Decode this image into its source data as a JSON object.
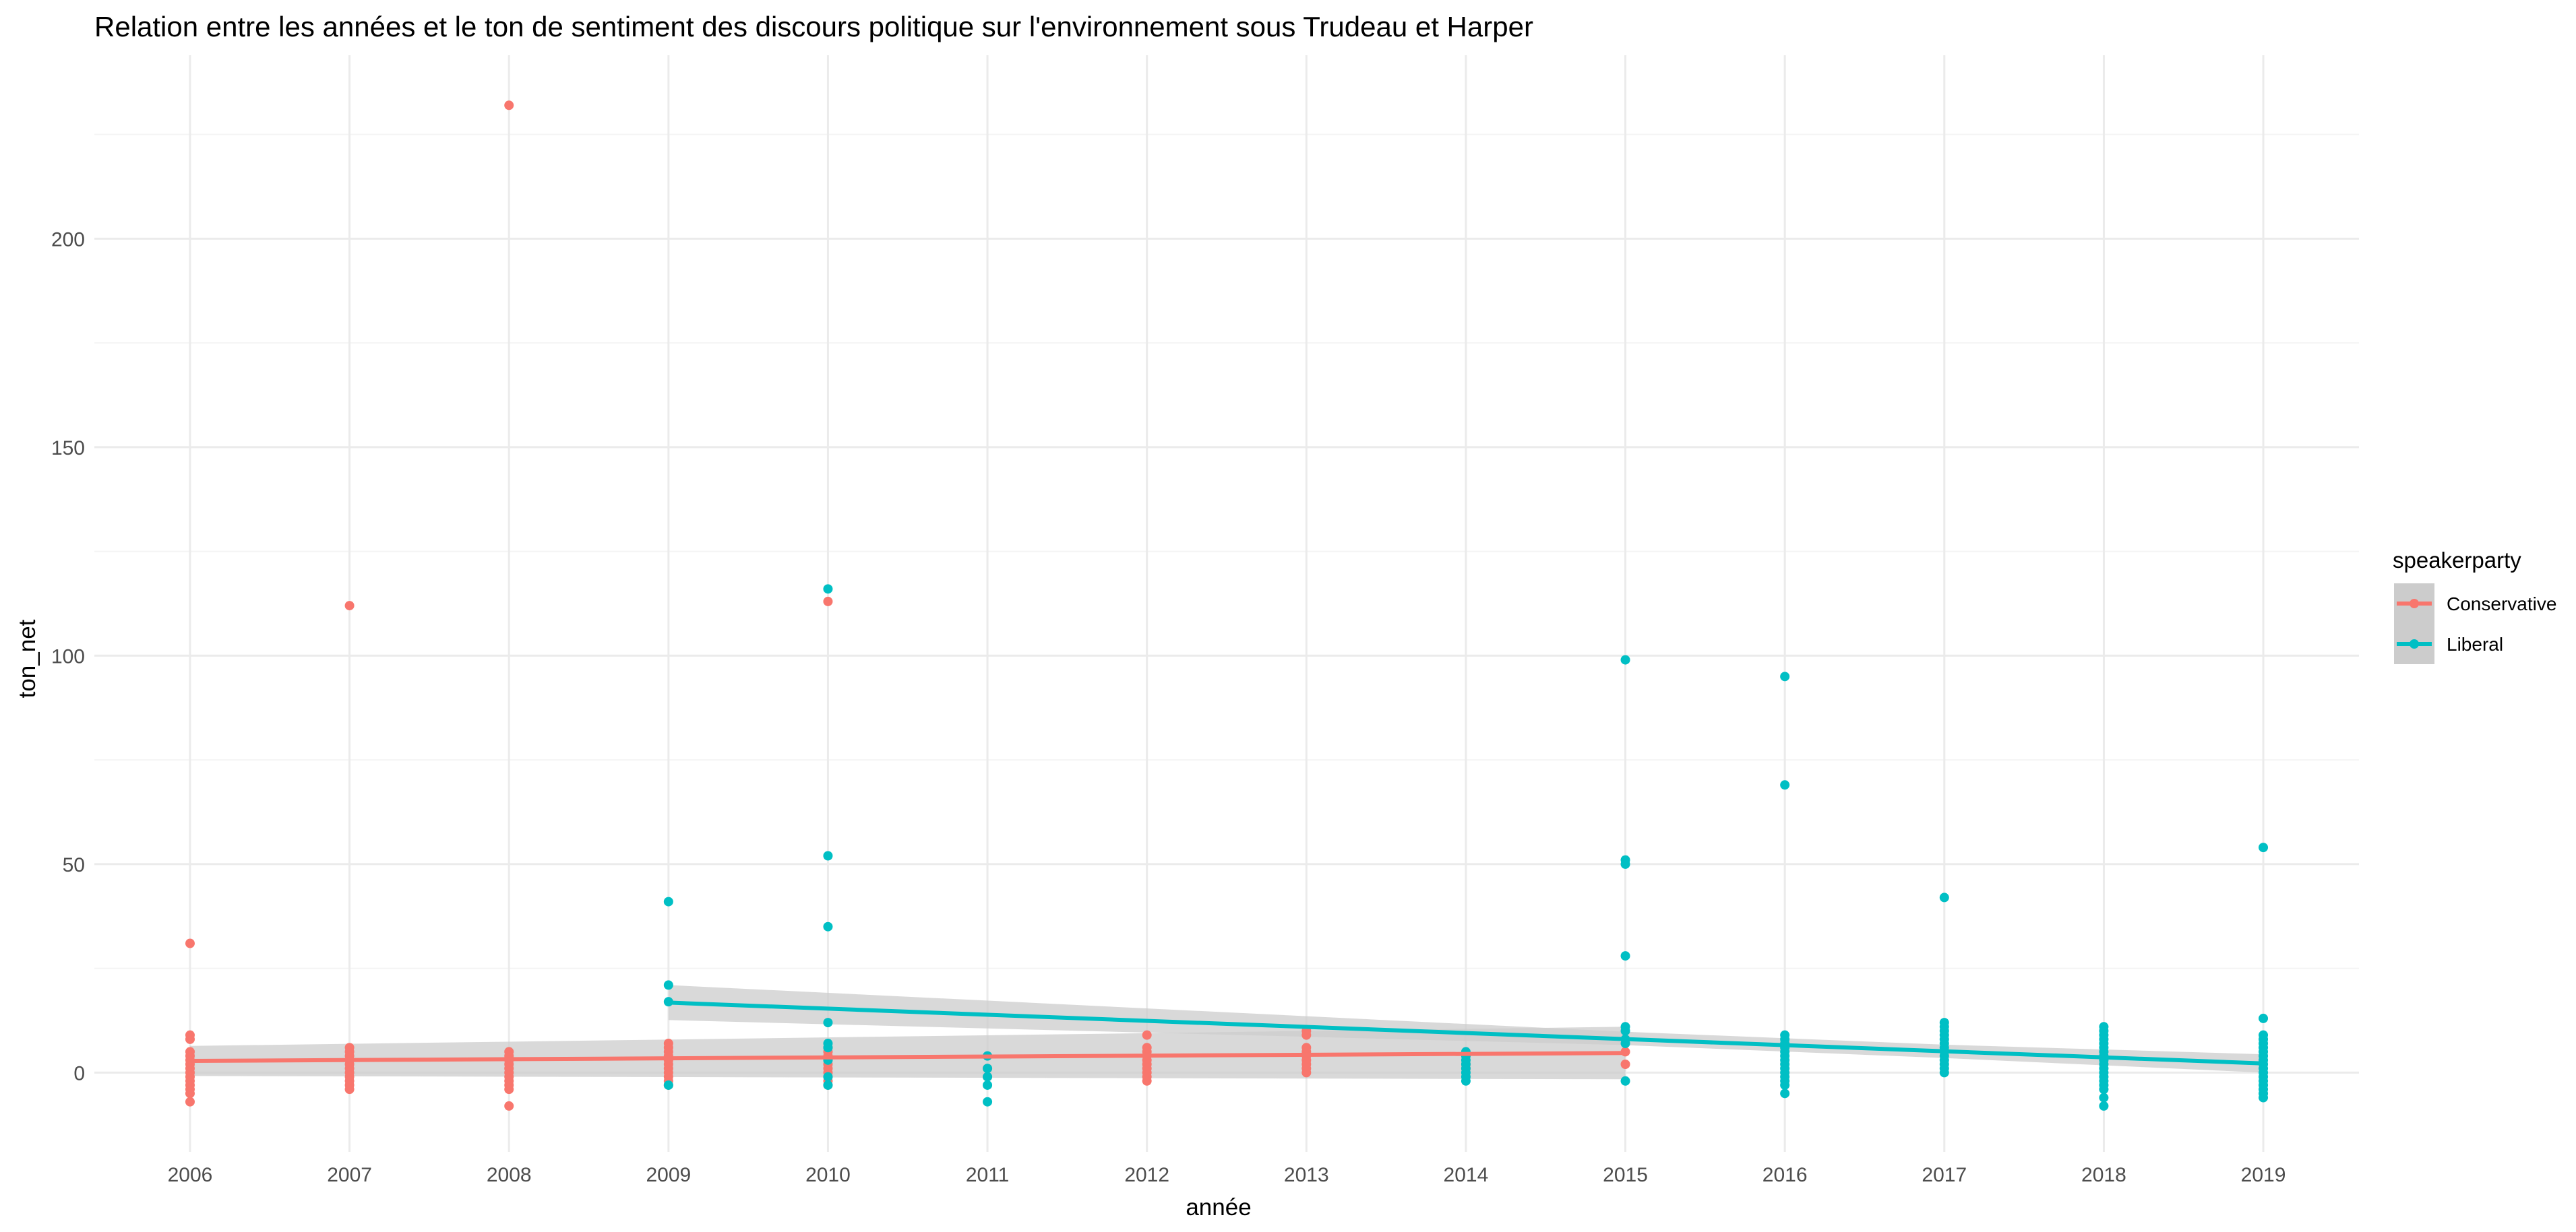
{
  "chart_data": {
    "type": "scatter",
    "title": "Relation entre les années et le ton de sentiment des discours politique sur l'environnement sous Trudeau et Harper",
    "xlabel": "année",
    "ylabel": "ton_net",
    "x_ticks": [
      2006,
      2007,
      2008,
      2009,
      2010,
      2011,
      2012,
      2013,
      2014,
      2015,
      2016,
      2017,
      2018,
      2019
    ],
    "y_ticks": [
      0,
      50,
      100,
      150,
      200
    ],
    "xlim": [
      2005.4,
      2019.6
    ],
    "ylim": [
      -19,
      244
    ],
    "grid": true,
    "legend": {
      "title": "speakerparty",
      "position": "right",
      "entries": [
        "Conservative",
        "Liberal"
      ]
    },
    "colors": {
      "Conservative": "#F8766D",
      "Liberal": "#00BFC4",
      "ribbon": "#CCCCCC"
    },
    "series": [
      {
        "name": "Conservative",
        "points": [
          [
            2006,
            31
          ],
          [
            2006,
            9
          ],
          [
            2006,
            8
          ],
          [
            2006,
            5
          ],
          [
            2006,
            4
          ],
          [
            2006,
            3
          ],
          [
            2006,
            2
          ],
          [
            2006,
            1
          ],
          [
            2006,
            0
          ],
          [
            2006,
            -1
          ],
          [
            2006,
            -2
          ],
          [
            2006,
            -3
          ],
          [
            2006,
            -4
          ],
          [
            2006,
            -5
          ],
          [
            2006,
            -7
          ],
          [
            2007,
            112
          ],
          [
            2007,
            6
          ],
          [
            2007,
            5
          ],
          [
            2007,
            4
          ],
          [
            2007,
            3
          ],
          [
            2007,
            2
          ],
          [
            2007,
            1
          ],
          [
            2007,
            0
          ],
          [
            2007,
            -1
          ],
          [
            2007,
            -2
          ],
          [
            2007,
            -3
          ],
          [
            2007,
            -4
          ],
          [
            2008,
            232
          ],
          [
            2008,
            5
          ],
          [
            2008,
            4
          ],
          [
            2008,
            3
          ],
          [
            2008,
            2
          ],
          [
            2008,
            1
          ],
          [
            2008,
            0
          ],
          [
            2008,
            -1
          ],
          [
            2008,
            -2
          ],
          [
            2008,
            -3
          ],
          [
            2008,
            -4
          ],
          [
            2008,
            -8
          ],
          [
            2009,
            7
          ],
          [
            2009,
            6
          ],
          [
            2009,
            5
          ],
          [
            2009,
            4
          ],
          [
            2009,
            3
          ],
          [
            2009,
            2
          ],
          [
            2009,
            1
          ],
          [
            2009,
            0
          ],
          [
            2009,
            -1
          ],
          [
            2009,
            -2
          ],
          [
            2009,
            -3
          ],
          [
            2010,
            113
          ],
          [
            2010,
            6
          ],
          [
            2010,
            5
          ],
          [
            2010,
            4
          ],
          [
            2010,
            3
          ],
          [
            2010,
            2
          ],
          [
            2010,
            1
          ],
          [
            2010,
            0
          ],
          [
            2010,
            -1
          ],
          [
            2010,
            -2
          ],
          [
            2010,
            -3
          ],
          [
            2011,
            1
          ],
          [
            2011,
            -1
          ],
          [
            2012,
            9
          ],
          [
            2012,
            6
          ],
          [
            2012,
            5
          ],
          [
            2012,
            4
          ],
          [
            2012,
            3
          ],
          [
            2012,
            2
          ],
          [
            2012,
            1
          ],
          [
            2012,
            0
          ],
          [
            2012,
            -1
          ],
          [
            2012,
            -2
          ],
          [
            2013,
            10
          ],
          [
            2013,
            9
          ],
          [
            2013,
            6
          ],
          [
            2013,
            5
          ],
          [
            2013,
            4
          ],
          [
            2013,
            3
          ],
          [
            2013,
            2
          ],
          [
            2013,
            1
          ],
          [
            2013,
            0
          ],
          [
            2014,
            4
          ],
          [
            2014,
            2
          ],
          [
            2014,
            1
          ],
          [
            2015,
            5
          ],
          [
            2015,
            2
          ]
        ],
        "trend": {
          "x": [
            2006,
            2015
          ],
          "y": [
            2.8,
            4.7
          ]
        },
        "band": {
          "x": [
            2006,
            2015
          ],
          "lower": [
            -0.8,
            -1.6
          ],
          "upper": [
            6.4,
            11.0
          ]
        }
      },
      {
        "name": "Liberal",
        "points": [
          [
            2009,
            41
          ],
          [
            2009,
            21
          ],
          [
            2009,
            17
          ],
          [
            2009,
            -3
          ],
          [
            2010,
            116
          ],
          [
            2010,
            52
          ],
          [
            2010,
            35
          ],
          [
            2010,
            12
          ],
          [
            2010,
            7
          ],
          [
            2010,
            6
          ],
          [
            2010,
            3
          ],
          [
            2010,
            -1
          ],
          [
            2010,
            -3
          ],
          [
            2011,
            4
          ],
          [
            2011,
            1
          ],
          [
            2011,
            -1
          ],
          [
            2011,
            -3
          ],
          [
            2011,
            -7
          ],
          [
            2014,
            5
          ],
          [
            2014,
            4
          ],
          [
            2014,
            3
          ],
          [
            2014,
            2
          ],
          [
            2014,
            1
          ],
          [
            2014,
            0
          ],
          [
            2014,
            -1
          ],
          [
            2014,
            -2
          ],
          [
            2015,
            99
          ],
          [
            2015,
            51
          ],
          [
            2015,
            50
          ],
          [
            2015,
            28
          ],
          [
            2015,
            11
          ],
          [
            2015,
            10
          ],
          [
            2015,
            8
          ],
          [
            2015,
            7
          ],
          [
            2015,
            -2
          ],
          [
            2016,
            95
          ],
          [
            2016,
            69
          ],
          [
            2016,
            9
          ],
          [
            2016,
            8
          ],
          [
            2016,
            7
          ],
          [
            2016,
            6
          ],
          [
            2016,
            5
          ],
          [
            2016,
            4
          ],
          [
            2016,
            3
          ],
          [
            2016,
            2
          ],
          [
            2016,
            1
          ],
          [
            2016,
            0
          ],
          [
            2016,
            -1
          ],
          [
            2016,
            -2
          ],
          [
            2016,
            -3
          ],
          [
            2016,
            -5
          ],
          [
            2017,
            42
          ],
          [
            2017,
            12
          ],
          [
            2017,
            11
          ],
          [
            2017,
            10
          ],
          [
            2017,
            9
          ],
          [
            2017,
            8
          ],
          [
            2017,
            7
          ],
          [
            2017,
            6
          ],
          [
            2017,
            5
          ],
          [
            2017,
            4
          ],
          [
            2017,
            3
          ],
          [
            2017,
            2
          ],
          [
            2017,
            1
          ],
          [
            2017,
            0
          ],
          [
            2018,
            11
          ],
          [
            2018,
            10
          ],
          [
            2018,
            9
          ],
          [
            2018,
            8
          ],
          [
            2018,
            7
          ],
          [
            2018,
            6
          ],
          [
            2018,
            5
          ],
          [
            2018,
            4
          ],
          [
            2018,
            3
          ],
          [
            2018,
            2
          ],
          [
            2018,
            1
          ],
          [
            2018,
            0
          ],
          [
            2018,
            -1
          ],
          [
            2018,
            -2
          ],
          [
            2018,
            -3
          ],
          [
            2018,
            -4
          ],
          [
            2018,
            -6
          ],
          [
            2018,
            -8
          ],
          [
            2019,
            54
          ],
          [
            2019,
            13
          ],
          [
            2019,
            9
          ],
          [
            2019,
            8
          ],
          [
            2019,
            7
          ],
          [
            2019,
            6
          ],
          [
            2019,
            5
          ],
          [
            2019,
            4
          ],
          [
            2019,
            3
          ],
          [
            2019,
            2
          ],
          [
            2019,
            1
          ],
          [
            2019,
            0
          ],
          [
            2019,
            -1
          ],
          [
            2019,
            -2
          ],
          [
            2019,
            -3
          ],
          [
            2019,
            -4
          ],
          [
            2019,
            -5
          ],
          [
            2019,
            -6
          ]
        ],
        "trend": {
          "x": [
            2009,
            2019
          ],
          "y": [
            16.8,
            2.2
          ]
        },
        "band": {
          "x": [
            2009,
            2015,
            2017,
            2019
          ],
          "lower": [
            12.6,
            6.6,
            3.5,
            0.0
          ],
          "upper": [
            21.0,
            9.8,
            6.7,
            4.4
          ]
        }
      }
    ]
  }
}
